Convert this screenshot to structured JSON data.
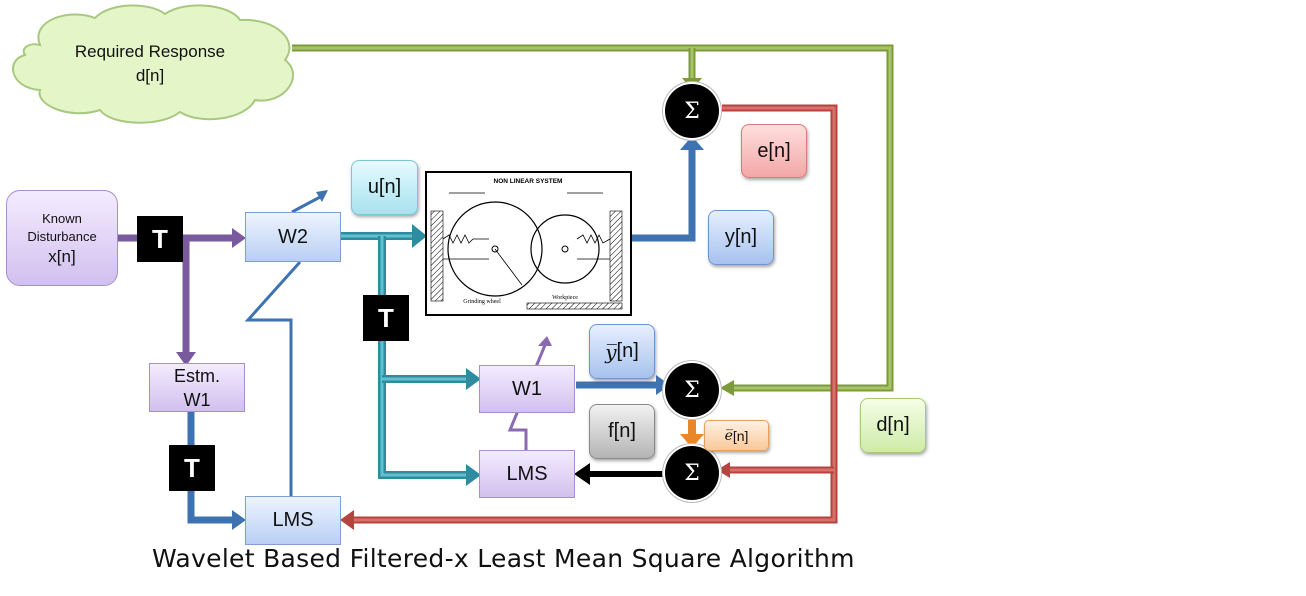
{
  "cloud": {
    "line1": "Required Response",
    "line2": "d[n]"
  },
  "known_disturbance": {
    "line1": "Known",
    "line2": "Disturbance",
    "line3": "x[n]"
  },
  "blocks": {
    "w2": "W2",
    "w1": "W1",
    "estm_w1_line1": "Estm.",
    "estm_w1_line2": "W1",
    "lms_top": "LMS",
    "lms_bottom": "LMS"
  },
  "t_label": "T",
  "sum_symbol": "Σ",
  "signals": {
    "u": "u[n]",
    "y": "y[n]",
    "e": "e[n]",
    "ybar": "[n]",
    "ybar_symbol": "y̅",
    "f": "f[n]",
    "ebar": "[n]",
    "ebar_symbol": "e̅",
    "d": "d[n]"
  },
  "plant": {
    "title": "NON LINEAR SYSTEM",
    "label_left": "Grinding wheel",
    "label_right": "Workpiece"
  },
  "caption": "Wavelet Based Filtered-x Least Mean Square Algorithm",
  "colors": {
    "green": "#7d9a3a",
    "red": "#b5433e",
    "purple": "#7a5a9e",
    "teal": "#3aa3b5",
    "blue": "#3e72b0",
    "black": "#000000",
    "orange": "#e8862a"
  }
}
